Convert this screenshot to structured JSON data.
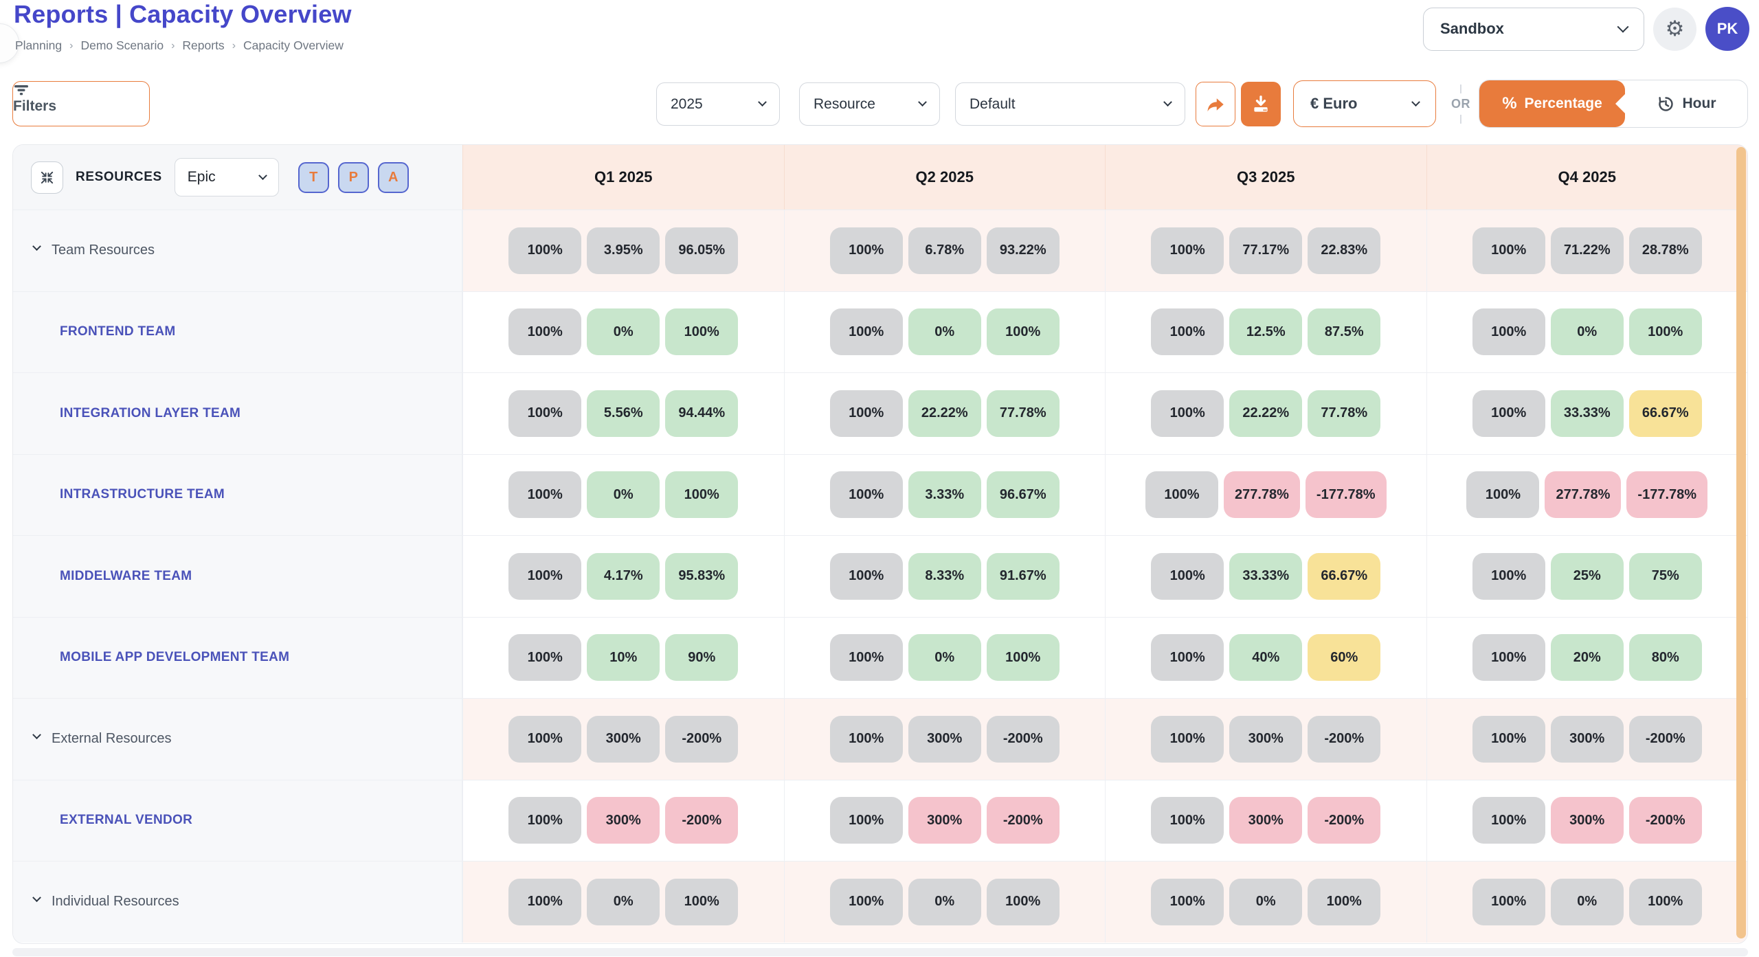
{
  "header": {
    "title": "Reports | Capacity Overview",
    "breadcrumb": [
      "Planning",
      "Demo Scenario",
      "Reports",
      "Capacity Overview"
    ],
    "breadcrumb_separator": "›",
    "environment": "Sandbox",
    "avatar_initials": "PK"
  },
  "toolbar": {
    "filters_label": "Filters",
    "year": "2025",
    "group_by": "Resource",
    "view": "Default",
    "currency": "€ Euro",
    "or_label": "OR",
    "unit_active": "Percentage",
    "unit_inactive": "Hour"
  },
  "table": {
    "resources_label": "RESOURCES",
    "level_select": "Epic",
    "toggles": [
      "T",
      "P",
      "A"
    ],
    "columns": [
      "Q1 2025",
      "Q2 2025",
      "Q3 2025",
      "Q4 2025"
    ],
    "rows": [
      {
        "label": "Team Resources",
        "type": "group",
        "cells": [
          {
            "values": [
              "100%",
              "3.95%",
              "96.05%"
            ],
            "colors": [
              "gray",
              "gray",
              "gray"
            ]
          },
          {
            "values": [
              "100%",
              "6.78%",
              "93.22%"
            ],
            "colors": [
              "gray",
              "gray",
              "gray"
            ]
          },
          {
            "values": [
              "100%",
              "77.17%",
              "22.83%"
            ],
            "colors": [
              "gray",
              "gray",
              "gray"
            ]
          },
          {
            "values": [
              "100%",
              "71.22%",
              "28.78%"
            ],
            "colors": [
              "gray",
              "gray",
              "gray"
            ]
          }
        ]
      },
      {
        "label": "FRONTEND TEAM",
        "type": "child",
        "cells": [
          {
            "values": [
              "100%",
              "0%",
              "100%"
            ],
            "colors": [
              "gray",
              "green",
              "green"
            ]
          },
          {
            "values": [
              "100%",
              "0%",
              "100%"
            ],
            "colors": [
              "gray",
              "green",
              "green"
            ]
          },
          {
            "values": [
              "100%",
              "12.5%",
              "87.5%"
            ],
            "colors": [
              "gray",
              "green",
              "green"
            ]
          },
          {
            "values": [
              "100%",
              "0%",
              "100%"
            ],
            "colors": [
              "gray",
              "green",
              "green"
            ]
          }
        ]
      },
      {
        "label": "INTEGRATION LAYER TEAM",
        "type": "child",
        "cells": [
          {
            "values": [
              "100%",
              "5.56%",
              "94.44%"
            ],
            "colors": [
              "gray",
              "green",
              "green"
            ]
          },
          {
            "values": [
              "100%",
              "22.22%",
              "77.78%"
            ],
            "colors": [
              "gray",
              "green",
              "green"
            ]
          },
          {
            "values": [
              "100%",
              "22.22%",
              "77.78%"
            ],
            "colors": [
              "gray",
              "green",
              "green"
            ]
          },
          {
            "values": [
              "100%",
              "33.33%",
              "66.67%"
            ],
            "colors": [
              "gray",
              "green",
              "yellow"
            ]
          }
        ]
      },
      {
        "label": "INTRASTRUCTURE TEAM",
        "type": "child",
        "cells": [
          {
            "values": [
              "100%",
              "0%",
              "100%"
            ],
            "colors": [
              "gray",
              "green",
              "green"
            ]
          },
          {
            "values": [
              "100%",
              "3.33%",
              "96.67%"
            ],
            "colors": [
              "gray",
              "green",
              "green"
            ]
          },
          {
            "values": [
              "100%",
              "277.78%",
              "-177.78%"
            ],
            "colors": [
              "gray",
              "pink",
              "pink"
            ]
          },
          {
            "values": [
              "100%",
              "277.78%",
              "-177.78%"
            ],
            "colors": [
              "gray",
              "pink",
              "pink"
            ]
          }
        ]
      },
      {
        "label": "MIDDELWARE TEAM",
        "type": "child",
        "cells": [
          {
            "values": [
              "100%",
              "4.17%",
              "95.83%"
            ],
            "colors": [
              "gray",
              "green",
              "green"
            ]
          },
          {
            "values": [
              "100%",
              "8.33%",
              "91.67%"
            ],
            "colors": [
              "gray",
              "green",
              "green"
            ]
          },
          {
            "values": [
              "100%",
              "33.33%",
              "66.67%"
            ],
            "colors": [
              "gray",
              "green",
              "yellow"
            ]
          },
          {
            "values": [
              "100%",
              "25%",
              "75%"
            ],
            "colors": [
              "gray",
              "green",
              "green"
            ]
          }
        ]
      },
      {
        "label": "MOBILE APP DEVELOPMENT TEAM",
        "type": "child",
        "cells": [
          {
            "values": [
              "100%",
              "10%",
              "90%"
            ],
            "colors": [
              "gray",
              "green",
              "green"
            ]
          },
          {
            "values": [
              "100%",
              "0%",
              "100%"
            ],
            "colors": [
              "gray",
              "green",
              "green"
            ]
          },
          {
            "values": [
              "100%",
              "40%",
              "60%"
            ],
            "colors": [
              "gray",
              "green",
              "yellow"
            ]
          },
          {
            "values": [
              "100%",
              "20%",
              "80%"
            ],
            "colors": [
              "gray",
              "green",
              "green"
            ]
          }
        ]
      },
      {
        "label": "External Resources",
        "type": "group",
        "cells": [
          {
            "values": [
              "100%",
              "300%",
              "-200%"
            ],
            "colors": [
              "gray",
              "gray",
              "gray"
            ]
          },
          {
            "values": [
              "100%",
              "300%",
              "-200%"
            ],
            "colors": [
              "gray",
              "gray",
              "gray"
            ]
          },
          {
            "values": [
              "100%",
              "300%",
              "-200%"
            ],
            "colors": [
              "gray",
              "gray",
              "gray"
            ]
          },
          {
            "values": [
              "100%",
              "300%",
              "-200%"
            ],
            "colors": [
              "gray",
              "gray",
              "gray"
            ]
          }
        ]
      },
      {
        "label": "EXTERNAL VENDOR",
        "type": "child",
        "cells": [
          {
            "values": [
              "100%",
              "300%",
              "-200%"
            ],
            "colors": [
              "gray",
              "pink",
              "pink"
            ]
          },
          {
            "values": [
              "100%",
              "300%",
              "-200%"
            ],
            "colors": [
              "gray",
              "pink",
              "pink"
            ]
          },
          {
            "values": [
              "100%",
              "300%",
              "-200%"
            ],
            "colors": [
              "gray",
              "pink",
              "pink"
            ]
          },
          {
            "values": [
              "100%",
              "300%",
              "-200%"
            ],
            "colors": [
              "gray",
              "pink",
              "pink"
            ]
          }
        ]
      },
      {
        "label": "Individual Resources",
        "type": "group",
        "cells": [
          {
            "values": [
              "100%",
              "0%",
              "100%"
            ],
            "colors": [
              "gray",
              "gray",
              "gray"
            ]
          },
          {
            "values": [
              "100%",
              "0%",
              "100%"
            ],
            "colors": [
              "gray",
              "gray",
              "gray"
            ]
          },
          {
            "values": [
              "100%",
              "0%",
              "100%"
            ],
            "colors": [
              "gray",
              "gray",
              "gray"
            ]
          },
          {
            "values": [
              "100%",
              "0%",
              "100%"
            ],
            "colors": [
              "gray",
              "gray",
              "gray"
            ]
          }
        ]
      }
    ]
  },
  "colors": {
    "accent_orange": "#e87b3c",
    "title_indigo": "#4547c9",
    "link_indigo": "#4a52b9",
    "badge": {
      "gray": "#d5d6d8",
      "green": "#c8e6cc",
      "yellow": "#f8e298",
      "pink": "#f5c3cc"
    }
  }
}
